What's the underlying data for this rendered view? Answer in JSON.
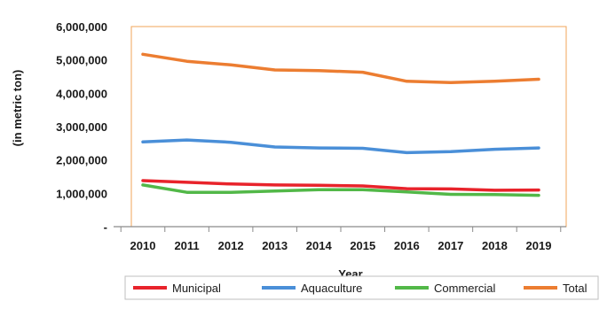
{
  "chart_data": {
    "type": "line",
    "title": "",
    "xlabel": "Year",
    "ylabel": "(in metric ton)",
    "x": [
      "2010",
      "2011",
      "2012",
      "2013",
      "2014",
      "2015",
      "2016",
      "2017",
      "2018",
      "2019"
    ],
    "ylim": [
      0,
      6000000
    ],
    "yticks": [
      0,
      1000000,
      2000000,
      3000000,
      4000000,
      5000000,
      6000000
    ],
    "ytick_labels": [
      "-",
      "1,000,000",
      "2,000,000",
      "3,000,000",
      "4,000,000",
      "5,000,000",
      "6,000,000"
    ],
    "grid": false,
    "legend_position": "bottom",
    "series": [
      {
        "name": "Municipal",
        "color": "#e8232b",
        "values": [
          1380000,
          1330000,
          1280000,
          1250000,
          1240000,
          1220000,
          1140000,
          1130000,
          1090000,
          1100000
        ]
      },
      {
        "name": "Aquaculture",
        "color": "#4a8fd8",
        "values": [
          2540000,
          2600000,
          2530000,
          2390000,
          2360000,
          2350000,
          2220000,
          2250000,
          2320000,
          2360000
        ]
      },
      {
        "name": "Commercial",
        "color": "#52b848",
        "values": [
          1250000,
          1030000,
          1030000,
          1070000,
          1110000,
          1110000,
          1040000,
          970000,
          960000,
          940000
        ]
      },
      {
        "name": "Total",
        "color": "#ec7d31",
        "values": [
          5170000,
          4960000,
          4850000,
          4700000,
          4680000,
          4630000,
          4360000,
          4320000,
          4360000,
          4420000
        ]
      }
    ]
  }
}
